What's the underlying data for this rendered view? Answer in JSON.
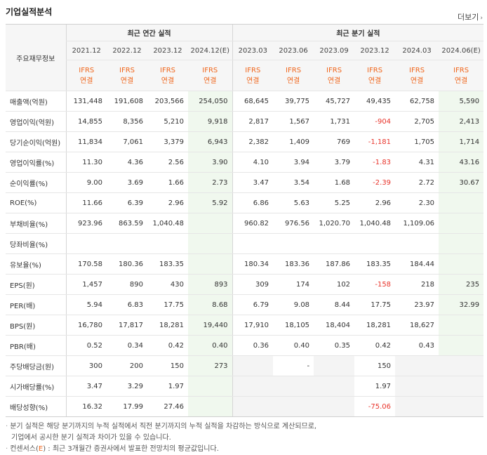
{
  "section_title": "기업실적분석",
  "more_link": "더보기",
  "header": {
    "row_label": "주요재무정보",
    "group_annual": "최근 연간 실적",
    "group_quarter": "최근 분기 실적",
    "annual_periods": [
      "2021.12",
      "2022.12",
      "2023.12",
      "2024.12(E)"
    ],
    "quarter_periods": [
      "2023.03",
      "2023.06",
      "2023.09",
      "2023.12",
      "2024.03",
      "2024.06(E)"
    ],
    "ifrs_top": "IFRS",
    "ifrs_bottom": "연결"
  },
  "rows": [
    {
      "label": "매출액(억원)",
      "annual": [
        "131,448",
        "191,608",
        "203,566",
        "254,050"
      ],
      "quarter": [
        "68,645",
        "39,775",
        "45,727",
        "49,435",
        "62,758",
        "5,590"
      ]
    },
    {
      "label": "영업이익(억원)",
      "annual": [
        "14,855",
        "8,356",
        "5,210",
        "9,918"
      ],
      "quarter": [
        "2,817",
        "1,567",
        "1,731",
        "-904",
        "2,705",
        "2,413"
      ]
    },
    {
      "label": "당기순이익(억원)",
      "annual": [
        "11,834",
        "7,061",
        "3,379",
        "6,943"
      ],
      "quarter": [
        "2,382",
        "1,409",
        "769",
        "-1,181",
        "1,705",
        "1,714"
      ]
    },
    {
      "label": "영업이익률(%)",
      "annual": [
        "11.30",
        "4.36",
        "2.56",
        "3.90"
      ],
      "quarter": [
        "4.10",
        "3.94",
        "3.79",
        "-1.83",
        "4.31",
        "43.16"
      ],
      "gap": true
    },
    {
      "label": "순이익률(%)",
      "annual": [
        "9.00",
        "3.69",
        "1.66",
        "2.73"
      ],
      "quarter": [
        "3.47",
        "3.54",
        "1.68",
        "-2.39",
        "2.72",
        "30.67"
      ]
    },
    {
      "label": "ROE(%)",
      "annual": [
        "11.66",
        "6.39",
        "2.96",
        "5.92"
      ],
      "quarter": [
        "6.86",
        "5.63",
        "5.25",
        "2.96",
        "2.30",
        ""
      ]
    },
    {
      "label": "부채비율(%)",
      "annual": [
        "923.96",
        "863.59",
        "1,040.48",
        ""
      ],
      "quarter": [
        "960.82",
        "976.56",
        "1,020.70",
        "1,040.48",
        "1,109.06",
        ""
      ],
      "gap": true
    },
    {
      "label": "당좌비율(%)",
      "annual": [
        "",
        "",
        "",
        ""
      ],
      "quarter": [
        "",
        "",
        "",
        "",
        "",
        ""
      ]
    },
    {
      "label": "유보율(%)",
      "annual": [
        "170.58",
        "180.36",
        "183.35",
        ""
      ],
      "quarter": [
        "180.34",
        "183.36",
        "187.86",
        "183.35",
        "184.44",
        ""
      ]
    },
    {
      "label": "EPS(원)",
      "annual": [
        "1,457",
        "890",
        "430",
        "893"
      ],
      "quarter": [
        "309",
        "174",
        "102",
        "-158",
        "218",
        "235"
      ],
      "gap": true
    },
    {
      "label": "PER(배)",
      "annual": [
        "5.94",
        "6.83",
        "17.75",
        "8.68"
      ],
      "quarter": [
        "6.79",
        "9.08",
        "8.44",
        "17.75",
        "23.97",
        "32.99"
      ]
    },
    {
      "label": "BPS(원)",
      "annual": [
        "16,780",
        "17,817",
        "18,281",
        "19,440"
      ],
      "quarter": [
        "17,910",
        "18,105",
        "18,404",
        "18,281",
        "18,627",
        ""
      ]
    },
    {
      "label": "PBR(배)",
      "annual": [
        "0.52",
        "0.34",
        "0.42",
        "0.40"
      ],
      "quarter": [
        "0.36",
        "0.40",
        "0.35",
        "0.42",
        "0.43",
        ""
      ]
    },
    {
      "label": "주당배당금(원)",
      "annual": [
        "300",
        "200",
        "150",
        "273"
      ],
      "quarter": [
        "",
        "-",
        "",
        "150",
        "",
        ""
      ],
      "gap": true,
      "quarter_blank": [
        true,
        false,
        true,
        false,
        true,
        true
      ]
    },
    {
      "label": "시가배당률(%)",
      "annual": [
        "3.47",
        "3.29",
        "1.97",
        ""
      ],
      "quarter": [
        "",
        "",
        "",
        "1.97",
        "",
        ""
      ],
      "quarter_blank": [
        true,
        true,
        true,
        false,
        true,
        true
      ]
    },
    {
      "label": "배당성향(%)",
      "annual": [
        "16.32",
        "17.99",
        "27.46",
        ""
      ],
      "quarter": [
        "",
        "",
        "",
        "-75.06",
        "",
        ""
      ],
      "quarter_blank": [
        true,
        true,
        true,
        false,
        true,
        true
      ]
    }
  ],
  "notes": {
    "line1": "분기 실적은 해당 분기까지의 누적 실적에서 직전 분기까지의 누적 실적을 차감하는 방식으로 계산되므로,",
    "line2": "기업에서 공시한 분기 실적과 차이가 있을 수 있습니다.",
    "line3_prefix": "컨센서스(",
    "line3_e": "E",
    "line3_suffix": ") : 최근 3개월간 증권사에서 발표한 전망치의 평균값입니다."
  }
}
